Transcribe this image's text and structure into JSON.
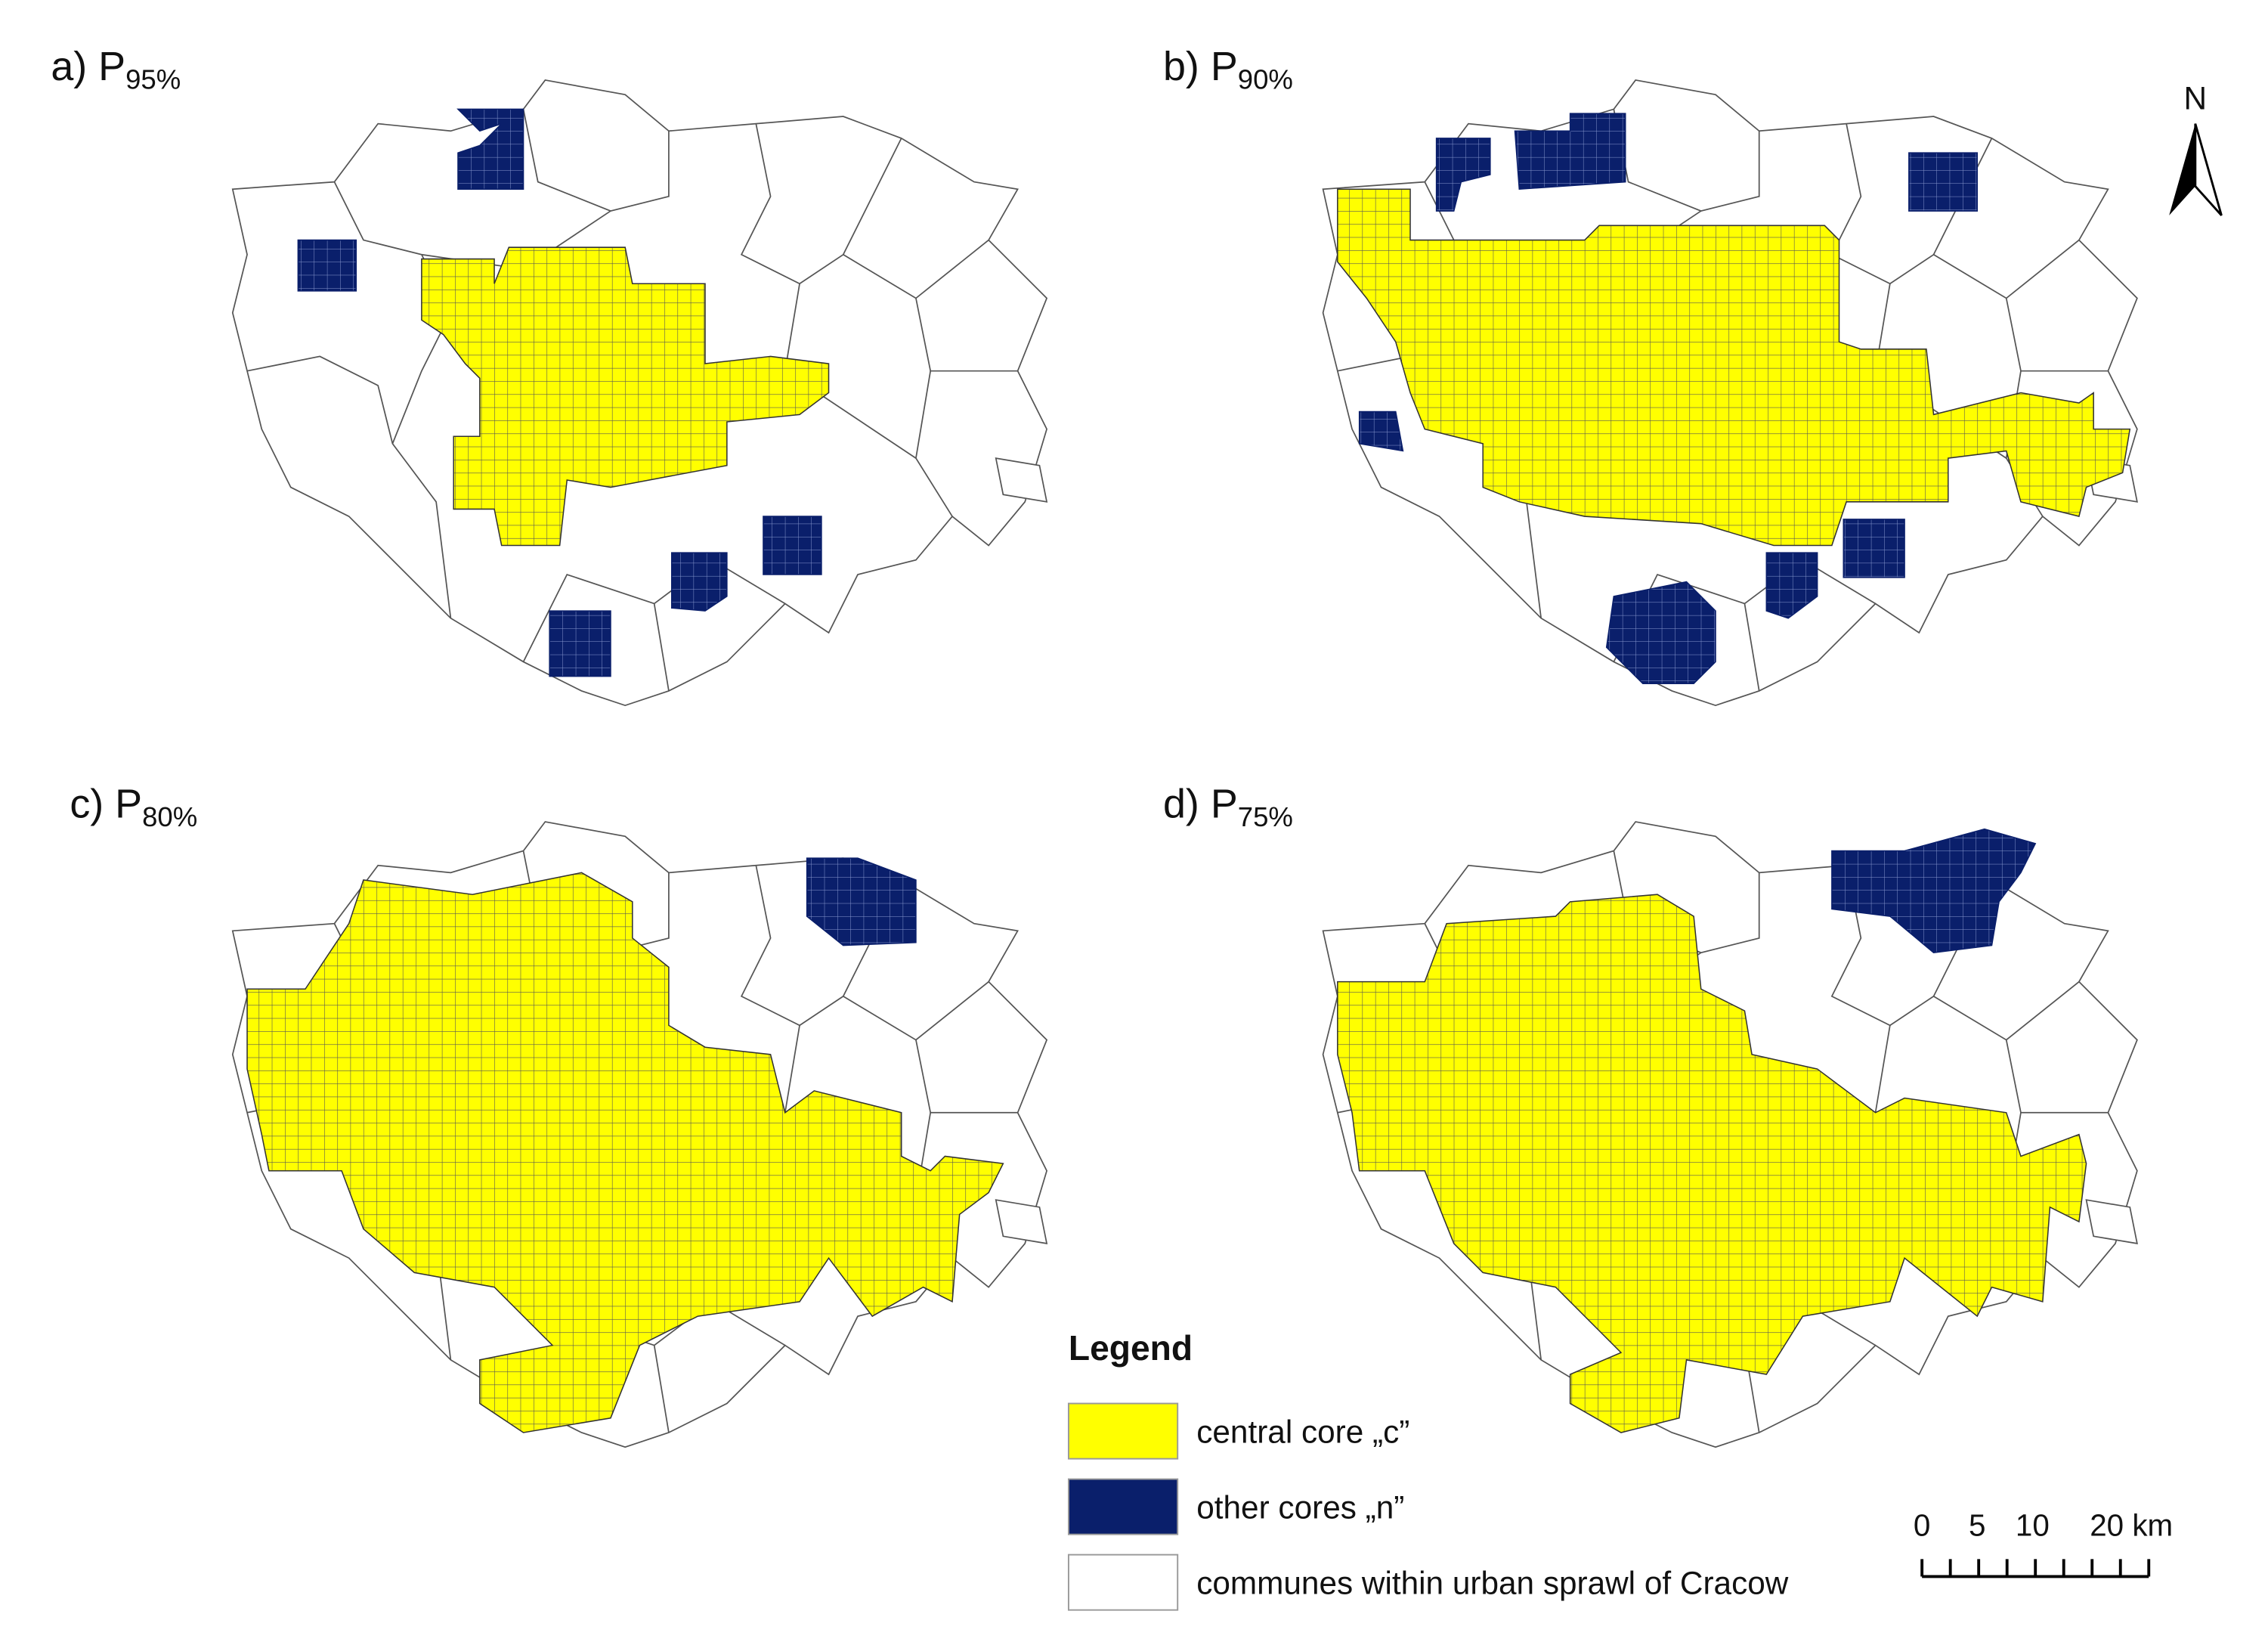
{
  "panels": [
    {
      "label": "a) P",
      "subscript": "95%"
    },
    {
      "label": "b) P",
      "subscript": "90%"
    },
    {
      "label": "c) P",
      "subscript": "80%"
    },
    {
      "label": "d) P",
      "subscript": "75%"
    }
  ],
  "north": "N",
  "legend": {
    "title": "Legend",
    "items": [
      "central core „c”",
      "other cores „n”",
      "communes within urban sprawl of Cracow"
    ]
  },
  "scale_bar": {
    "labels": [
      "0",
      "5",
      "10",
      "20 km"
    ]
  }
}
